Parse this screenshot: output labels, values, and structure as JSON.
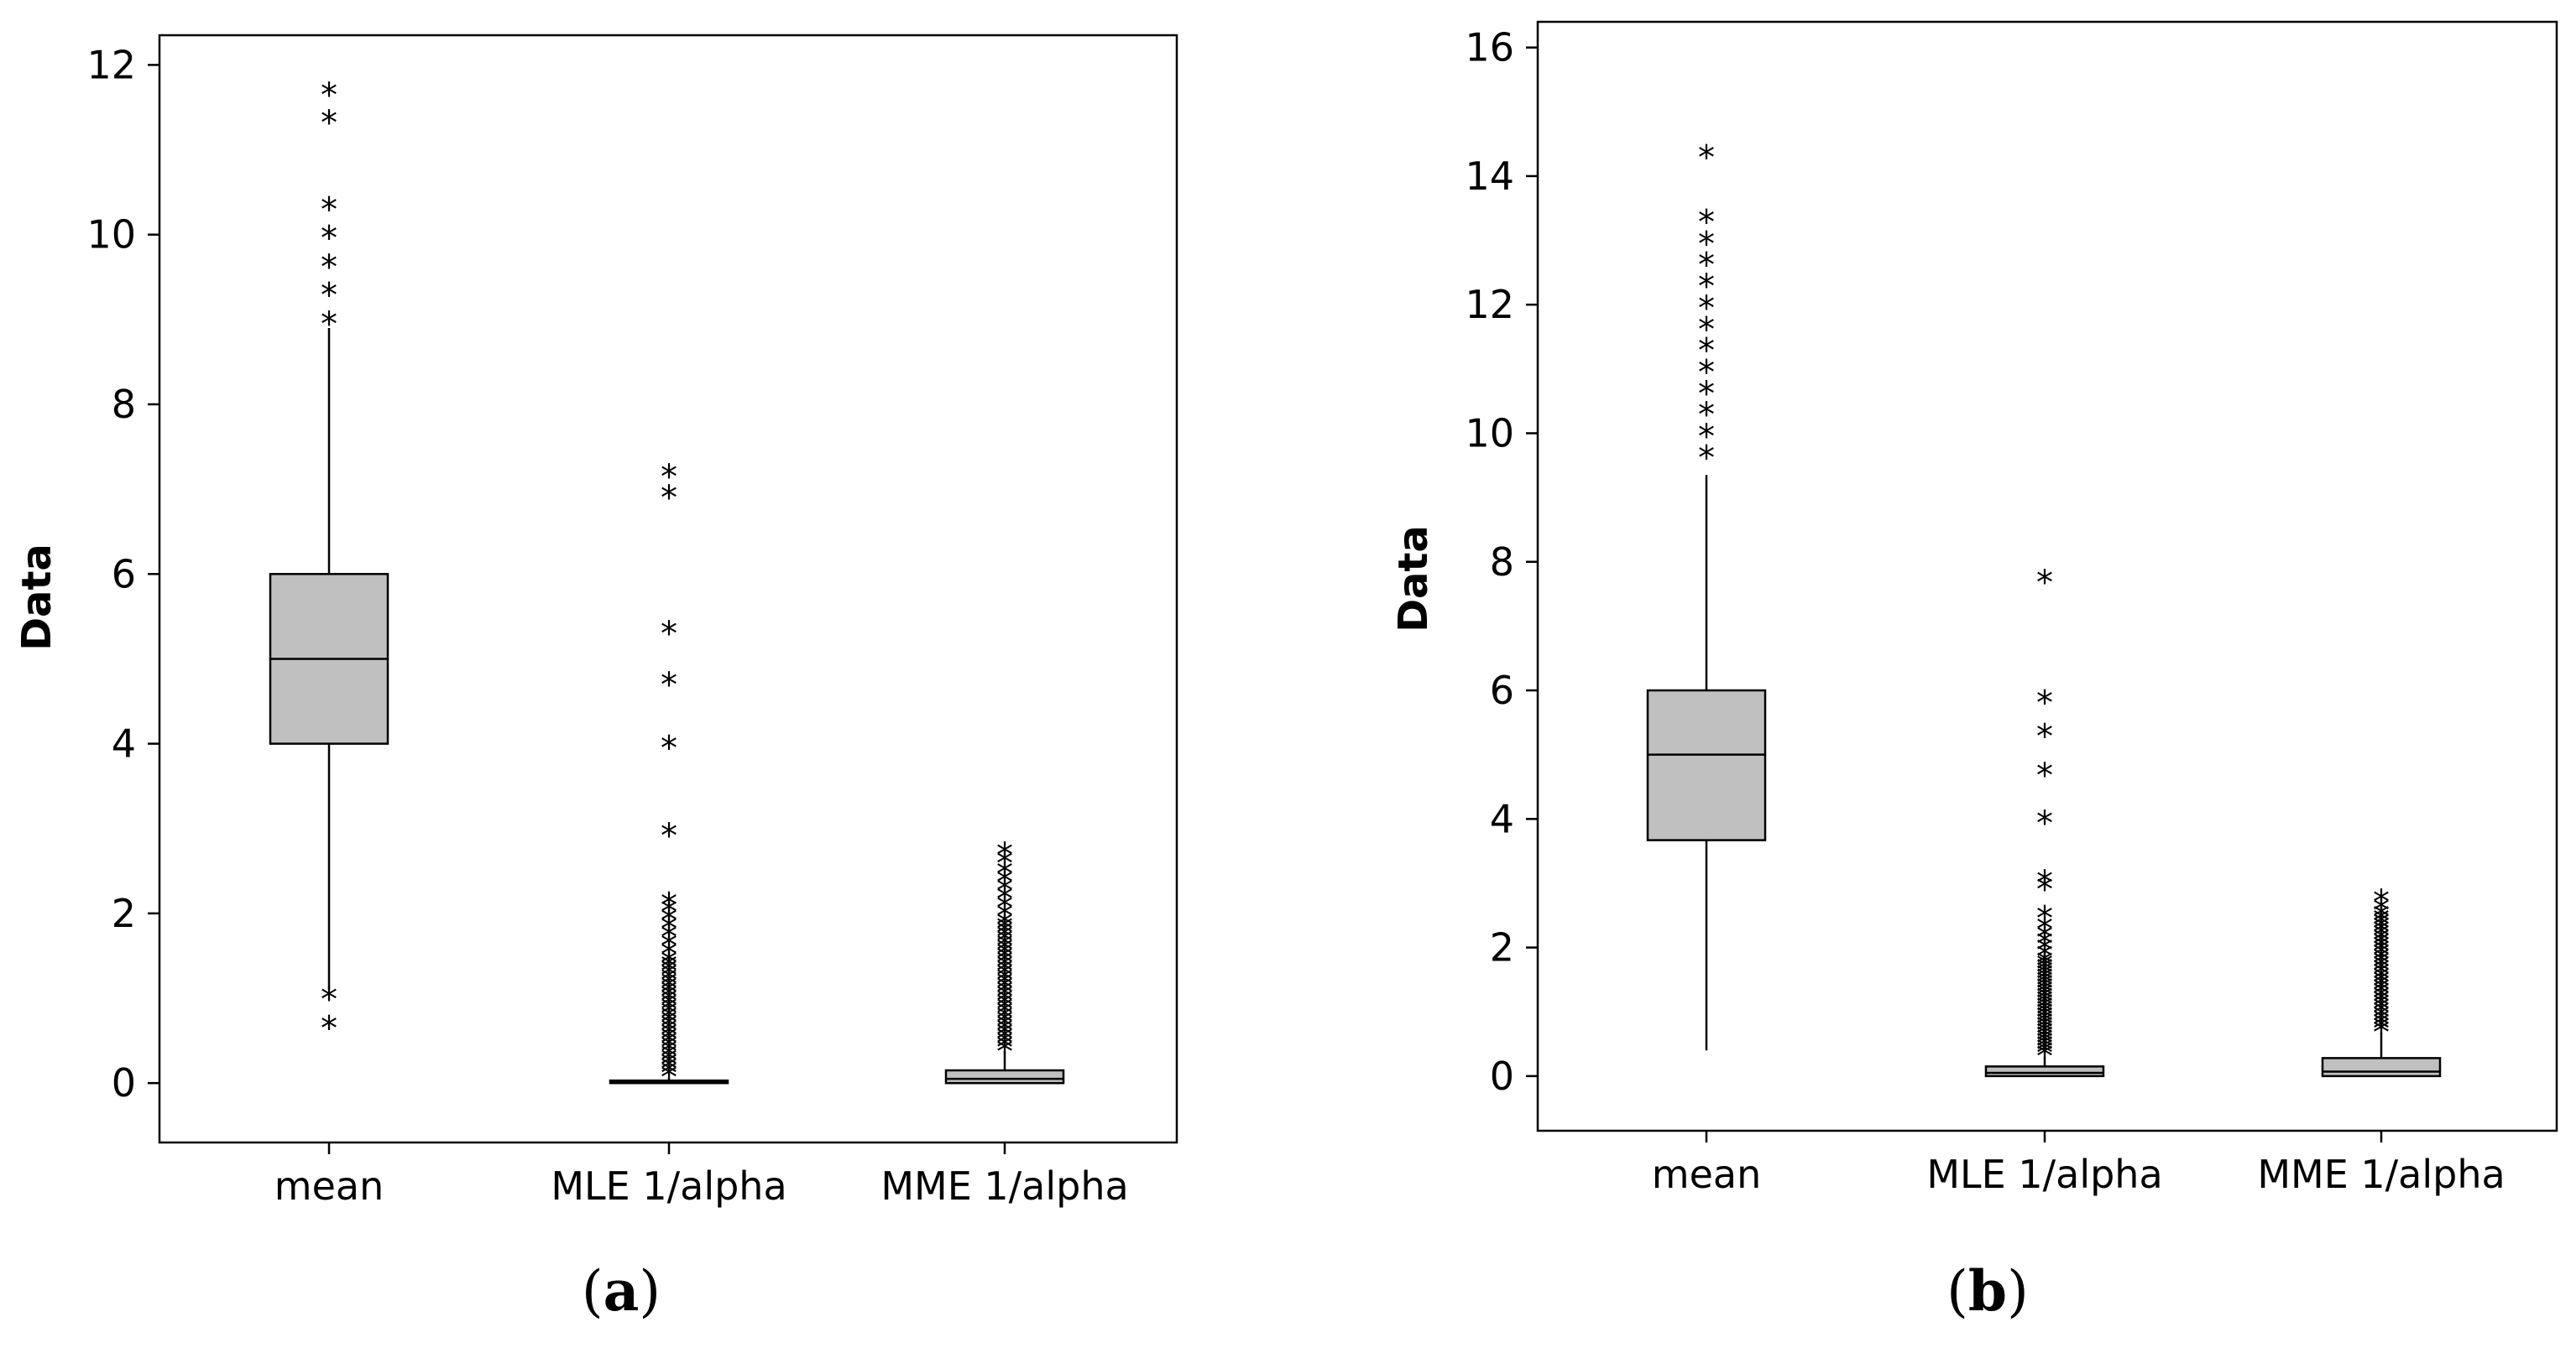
{
  "panels": [
    {
      "label": "a",
      "chart_data": {
        "type": "boxplot",
        "ylabel": "Data",
        "ylim": [
          -0.7,
          12.35
        ],
        "yticks": [
          0,
          2,
          4,
          6,
          8,
          10,
          12
        ],
        "categories": [
          "mean",
          "MLE 1/alpha",
          "MME 1/alpha"
        ],
        "boxes": [
          {
            "category": "mean",
            "q1": 4,
            "median": 5,
            "q3": 6,
            "whisker_low": 1.1,
            "whisker_high": 8.9,
            "outliers": [
              0.68,
              1.02,
              8.98,
              9.32,
              9.65,
              9.99,
              10.33,
              11.35,
              11.68
            ]
          },
          {
            "category": "MLE 1/alpha",
            "q1": 0,
            "median": 0.01,
            "q3": 0.03,
            "whisker_low": 0,
            "whisker_high": 0.06,
            "outliers": [
              0.1,
              0.15,
              0.2,
              0.25,
              0.3,
              0.35,
              0.4,
              0.45,
              0.5,
              0.55,
              0.6,
              0.65,
              0.7,
              0.75,
              0.8,
              0.85,
              0.9,
              0.95,
              1.0,
              1.05,
              1.1,
              1.15,
              1.2,
              1.25,
              1.3,
              1.35,
              1.4,
              1.45,
              1.55,
              1.65,
              1.75,
              1.85,
              1.95,
              2.05,
              2.13,
              2.95,
              3.98,
              4.73,
              5.33,
              6.93,
              7.18
            ]
          },
          {
            "category": "MME 1/alpha",
            "q1": 0,
            "median": 0.05,
            "q3": 0.15,
            "whisker_low": 0,
            "whisker_high": 0.38,
            "outliers": [
              0.4,
              0.45,
              0.5,
              0.55,
              0.6,
              0.65,
              0.7,
              0.75,
              0.8,
              0.85,
              0.9,
              0.95,
              1.0,
              1.05,
              1.1,
              1.15,
              1.2,
              1.25,
              1.3,
              1.35,
              1.4,
              1.45,
              1.5,
              1.55,
              1.6,
              1.65,
              1.7,
              1.75,
              1.8,
              1.85,
              1.9,
              2.0,
              2.1,
              2.2,
              2.3,
              2.4,
              2.5,
              2.62,
              2.72
            ]
          }
        ]
      }
    },
    {
      "label": "b",
      "chart_data": {
        "type": "boxplot",
        "ylabel": "Data",
        "ylim": [
          -0.85,
          16.4
        ],
        "yticks": [
          0,
          2,
          4,
          6,
          8,
          10,
          12,
          14,
          16
        ],
        "categories": [
          "mean",
          "MLE 1/alpha",
          "MME 1/alpha"
        ],
        "boxes": [
          {
            "category": "mean",
            "q1": 3.67,
            "median": 5,
            "q3": 6,
            "whisker_low": 0.4,
            "whisker_high": 9.35,
            "outliers": [
              9.66,
              9.99,
              10.33,
              10.66,
              10.99,
              11.33,
              11.66,
              11.99,
              12.33,
              12.66,
              12.99,
              13.33,
              14.33
            ]
          },
          {
            "category": "MLE 1/alpha",
            "q1": 0,
            "median": 0.05,
            "q3": 0.15,
            "whisker_low": 0,
            "whisker_high": 0.3,
            "outliers": [
              0.35,
              0.4,
              0.45,
              0.5,
              0.55,
              0.6,
              0.65,
              0.7,
              0.75,
              0.8,
              0.85,
              0.9,
              0.95,
              1.0,
              1.05,
              1.1,
              1.15,
              1.2,
              1.25,
              1.3,
              1.35,
              1.4,
              1.45,
              1.5,
              1.55,
              1.6,
              1.65,
              1.7,
              1.75,
              1.8,
              1.9,
              2.0,
              2.1,
              2.2,
              2.33,
              2.5,
              2.95,
              3.05,
              3.98,
              4.72,
              5.33,
              5.85,
              7.72
            ]
          },
          {
            "category": "MME 1/alpha",
            "q1": 0,
            "median": 0.07,
            "q3": 0.28,
            "whisker_low": 0,
            "whisker_high": 0.68,
            "outliers": [
              0.72,
              0.78,
              0.84,
              0.9,
              0.96,
              1.02,
              1.08,
              1.14,
              1.2,
              1.26,
              1.32,
              1.38,
              1.44,
              1.5,
              1.56,
              1.62,
              1.68,
              1.74,
              1.8,
              1.86,
              1.92,
              1.98,
              2.04,
              2.1,
              2.16,
              2.22,
              2.28,
              2.34,
              2.4,
              2.46,
              2.52,
              2.62,
              2.75
            ]
          }
        ]
      }
    }
  ],
  "colors": {
    "box_fill": "#c0c0c0",
    "stroke": "#000000",
    "background": "#ffffff"
  }
}
